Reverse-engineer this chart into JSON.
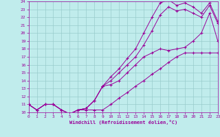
{
  "xlabel": "Windchill (Refroidissement éolien,°C)",
  "bg_color": "#c0ecec",
  "grid_color": "#98cccc",
  "line_color": "#990099",
  "xmin": 0,
  "xmax": 23,
  "ymin": 10,
  "ymax": 24,
  "curves": [
    {
      "x": [
        0,
        1,
        2,
        3,
        4,
        5,
        6,
        7,
        8,
        9,
        10,
        11,
        12,
        13,
        14,
        15,
        16,
        17,
        18,
        19,
        20,
        21,
        22,
        23
      ],
      "y": [
        11.0,
        10.3,
        11.0,
        11.0,
        10.3,
        9.8,
        10.3,
        10.3,
        10.3,
        10.3,
        11.0,
        11.8,
        12.5,
        13.3,
        14.0,
        14.8,
        15.5,
        16.3,
        17.0,
        17.5,
        17.5,
        17.5,
        17.5,
        17.5
      ]
    },
    {
      "x": [
        0,
        1,
        2,
        3,
        4,
        5,
        6,
        7,
        8,
        9,
        10,
        11,
        12,
        13,
        14,
        15,
        16,
        17,
        18,
        19,
        20,
        21,
        22,
        23
      ],
      "y": [
        11.0,
        10.3,
        11.0,
        11.0,
        10.3,
        9.8,
        10.3,
        10.5,
        11.5,
        13.3,
        13.5,
        14.0,
        15.0,
        16.0,
        17.0,
        17.5,
        18.0,
        17.8,
        18.0,
        18.2,
        19.0,
        20.0,
        22.5,
        19.0
      ]
    },
    {
      "x": [
        0,
        1,
        2,
        3,
        4,
        5,
        6,
        7,
        8,
        9,
        10,
        11,
        12,
        13,
        14,
        15,
        16,
        17,
        18,
        19,
        20,
        21,
        22,
        23
      ],
      "y": [
        11.0,
        10.3,
        11.0,
        11.0,
        10.3,
        9.8,
        10.3,
        10.5,
        11.5,
        13.3,
        14.0,
        15.0,
        16.0,
        17.0,
        18.5,
        20.3,
        22.3,
        23.3,
        22.8,
        23.0,
        22.5,
        22.0,
        23.5,
        21.2
      ]
    },
    {
      "x": [
        0,
        1,
        2,
        3,
        4,
        5,
        6,
        7,
        8,
        9,
        10,
        11,
        12,
        13,
        14,
        15,
        16,
        17,
        18,
        19,
        20,
        21,
        22,
        23
      ],
      "y": [
        11.0,
        10.3,
        11.0,
        11.0,
        10.3,
        9.8,
        10.3,
        10.5,
        11.5,
        13.3,
        14.5,
        15.5,
        16.8,
        18.0,
        20.0,
        22.0,
        23.8,
        24.2,
        23.5,
        23.8,
        23.3,
        22.5,
        23.8,
        21.5
      ]
    }
  ]
}
